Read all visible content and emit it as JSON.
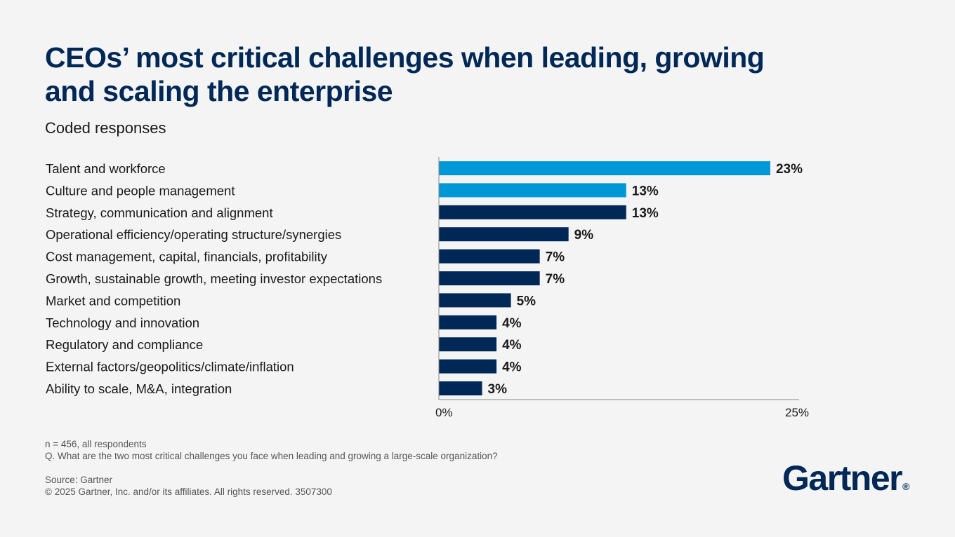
{
  "title": "CEOs’ most critical challenges when leading, growing and scaling the enterprise",
  "subtitle": "Coded responses",
  "footnotes": {
    "n": "n = 456, all respondents",
    "question": "Q. What are the two most critical challenges you face when leading and growing a large-scale organization?",
    "source": "Source: Gartner",
    "copyright": "© 2025 Gartner, Inc. and/or its affiliates. All rights reserved. 3507300"
  },
  "logo": {
    "text": "Gartner",
    "mark": "®"
  },
  "colors": {
    "highlight": "#0097d7",
    "primary": "#002856",
    "axis": "#888888"
  },
  "chart_data": {
    "type": "bar",
    "orientation": "horizontal",
    "categories": [
      "Talent and workforce",
      "Culture and people management",
      "Strategy, communication and alignment",
      "Operational efficiency/operating structure/synergies",
      "Cost management, capital, financials, profitability",
      "Growth, sustainable growth, meeting investor expectations",
      "Market and competition",
      "Technology and innovation",
      "Regulatory and compliance",
      "External factors/geopolitics/climate/inflation",
      "Ability to scale, M&A, integration"
    ],
    "values": [
      23,
      13,
      13,
      9,
      7,
      7,
      5,
      4,
      4,
      4,
      3
    ],
    "value_labels": [
      "23%",
      "13%",
      "13%",
      "9%",
      "7%",
      "7%",
      "5%",
      "4%",
      "4%",
      "4%",
      "3%"
    ],
    "highlighted": [
      true,
      true,
      false,
      false,
      false,
      false,
      false,
      false,
      false,
      false,
      false
    ],
    "xlim": [
      0,
      25
    ],
    "x_tick_labels": [
      "0%",
      "25%"
    ],
    "grid": false
  }
}
